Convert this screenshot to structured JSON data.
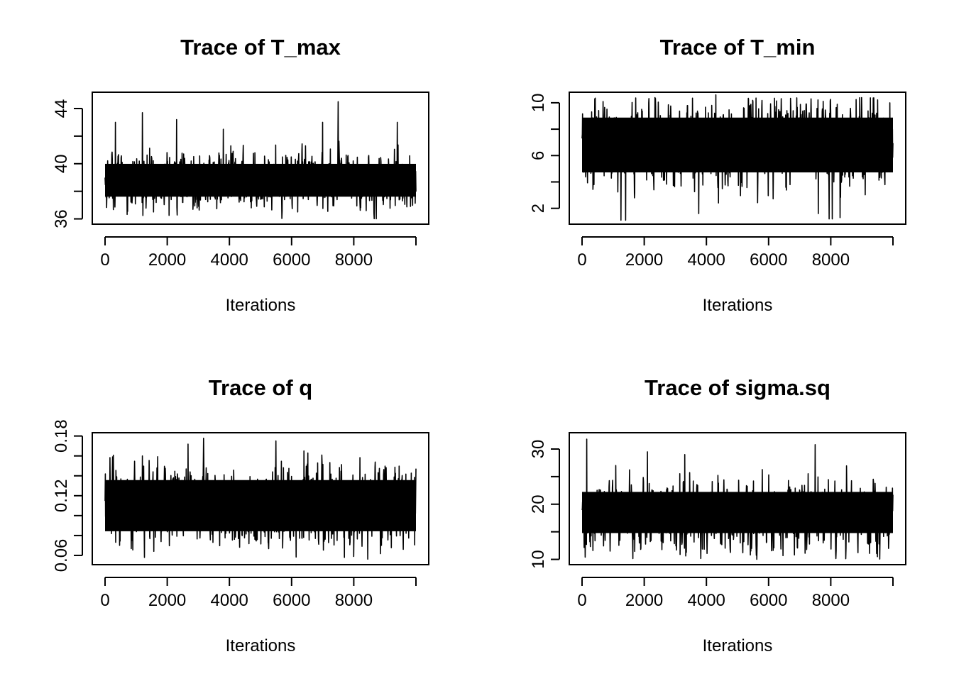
{
  "chart_data": [
    {
      "type": "line",
      "title": "Trace of T_max",
      "xlabel": "Iterations",
      "ylabel": "",
      "x_ticks": [
        "0",
        "2000",
        "4000",
        "6000",
        "8000"
      ],
      "y_ticks": [
        "36",
        "40",
        "44"
      ],
      "xlim": [
        0,
        10000
      ],
      "ylim": [
        36,
        44.8
      ],
      "y_minor_ticks": [
        38,
        42
      ],
      "grid": false,
      "legend": "none",
      "line_color": "#000000",
      "series": [
        {
          "x": [
            0,
            10000
          ],
          "trace_summary": {
            "center": 38.8,
            "typical_low": 37.3,
            "typical_high": 40.3
          },
          "extremes": [
            {
              "x": 330,
              "y": 43.0
            },
            {
              "x": 1200,
              "y": 43.7
            },
            {
              "x": 2300,
              "y": 43.2
            },
            {
              "x": 1560,
              "y": 36.5
            },
            {
              "x": 3800,
              "y": 42.5
            },
            {
              "x": 7500,
              "y": 44.5
            },
            {
              "x": 7000,
              "y": 43.0
            },
            {
              "x": 9400,
              "y": 43.0
            },
            {
              "x": 6200,
              "y": 36.5
            },
            {
              "x": 8400,
              "y": 36.6
            }
          ]
        }
      ]
    },
    {
      "type": "line",
      "title": "Trace of T_min",
      "xlabel": "Iterations",
      "ylabel": "",
      "x_ticks": [
        "0",
        "2000",
        "4000",
        "6000",
        "8000"
      ],
      "y_ticks": [
        "2",
        "6",
        "10"
      ],
      "xlim": [
        0,
        10000
      ],
      "ylim": [
        1.2,
        10.4
      ],
      "y_minor_ticks": [
        4,
        8
      ],
      "grid": false,
      "legend": "none",
      "line_color": "#000000",
      "series": [
        {
          "x": [
            0,
            10000
          ],
          "trace_summary": {
            "center": 6.9,
            "typical_low": 4.4,
            "typical_high": 9.2
          },
          "extremes": [
            {
              "x": 1250,
              "y": 1.1
            },
            {
              "x": 1400,
              "y": 1.1
            },
            {
              "x": 7950,
              "y": 1.2
            },
            {
              "x": 8050,
              "y": 1.2
            },
            {
              "x": 8300,
              "y": 1.3
            },
            {
              "x": 4300,
              "y": 10.6
            },
            {
              "x": 3750,
              "y": 1.6
            },
            {
              "x": 7600,
              "y": 1.6
            },
            {
              "x": 9900,
              "y": 10.0
            }
          ]
        }
      ]
    },
    {
      "type": "line",
      "title": "Trace of q",
      "xlabel": "Iterations",
      "ylabel": "",
      "x_ticks": [
        "0",
        "2000",
        "4000",
        "6000",
        "8000"
      ],
      "y_ticks": [
        "0.06",
        "0.12",
        "0.18"
      ],
      "xlim": [
        0,
        10000
      ],
      "ylim": [
        0.056,
        0.178
      ],
      "y_minor_ticks": [
        0.08,
        0.1,
        0.14,
        0.16
      ],
      "grid": false,
      "legend": "none",
      "line_color": "#000000",
      "series": [
        {
          "x": [
            0,
            10000
          ],
          "trace_summary": {
            "center": 0.109,
            "typical_low": 0.08,
            "typical_high": 0.14
          },
          "extremes": [
            {
              "x": 5500,
              "y": 0.175
            },
            {
              "x": 1270,
              "y": 0.058
            },
            {
              "x": 7700,
              "y": 0.058
            },
            {
              "x": 8000,
              "y": 0.059
            },
            {
              "x": 1200,
              "y": 0.16
            },
            {
              "x": 6400,
              "y": 0.165
            }
          ]
        }
      ]
    },
    {
      "type": "line",
      "title": "Trace of sigma.sq",
      "xlabel": "Iterations",
      "ylabel": "",
      "x_ticks": [
        "0",
        "2000",
        "4000",
        "6000",
        "8000"
      ],
      "y_ticks": [
        "10",
        "20",
        "30"
      ],
      "xlim": [
        0,
        10000
      ],
      "ylim": [
        10,
        32
      ],
      "y_minor_ticks": [
        15,
        25
      ],
      "grid": false,
      "legend": "none",
      "line_color": "#000000",
      "series": [
        {
          "x": [
            0,
            10000
          ],
          "trace_summary": {
            "center": 18,
            "typical_low": 14,
            "typical_high": 23
          },
          "extremes": [
            {
              "x": 150,
              "y": 31.8
            },
            {
              "x": 7500,
              "y": 30.8
            },
            {
              "x": 2100,
              "y": 29.5
            },
            {
              "x": 3300,
              "y": 29.0
            },
            {
              "x": 9500,
              "y": 10.5
            },
            {
              "x": 900,
              "y": 11.5
            }
          ]
        }
      ]
    }
  ]
}
